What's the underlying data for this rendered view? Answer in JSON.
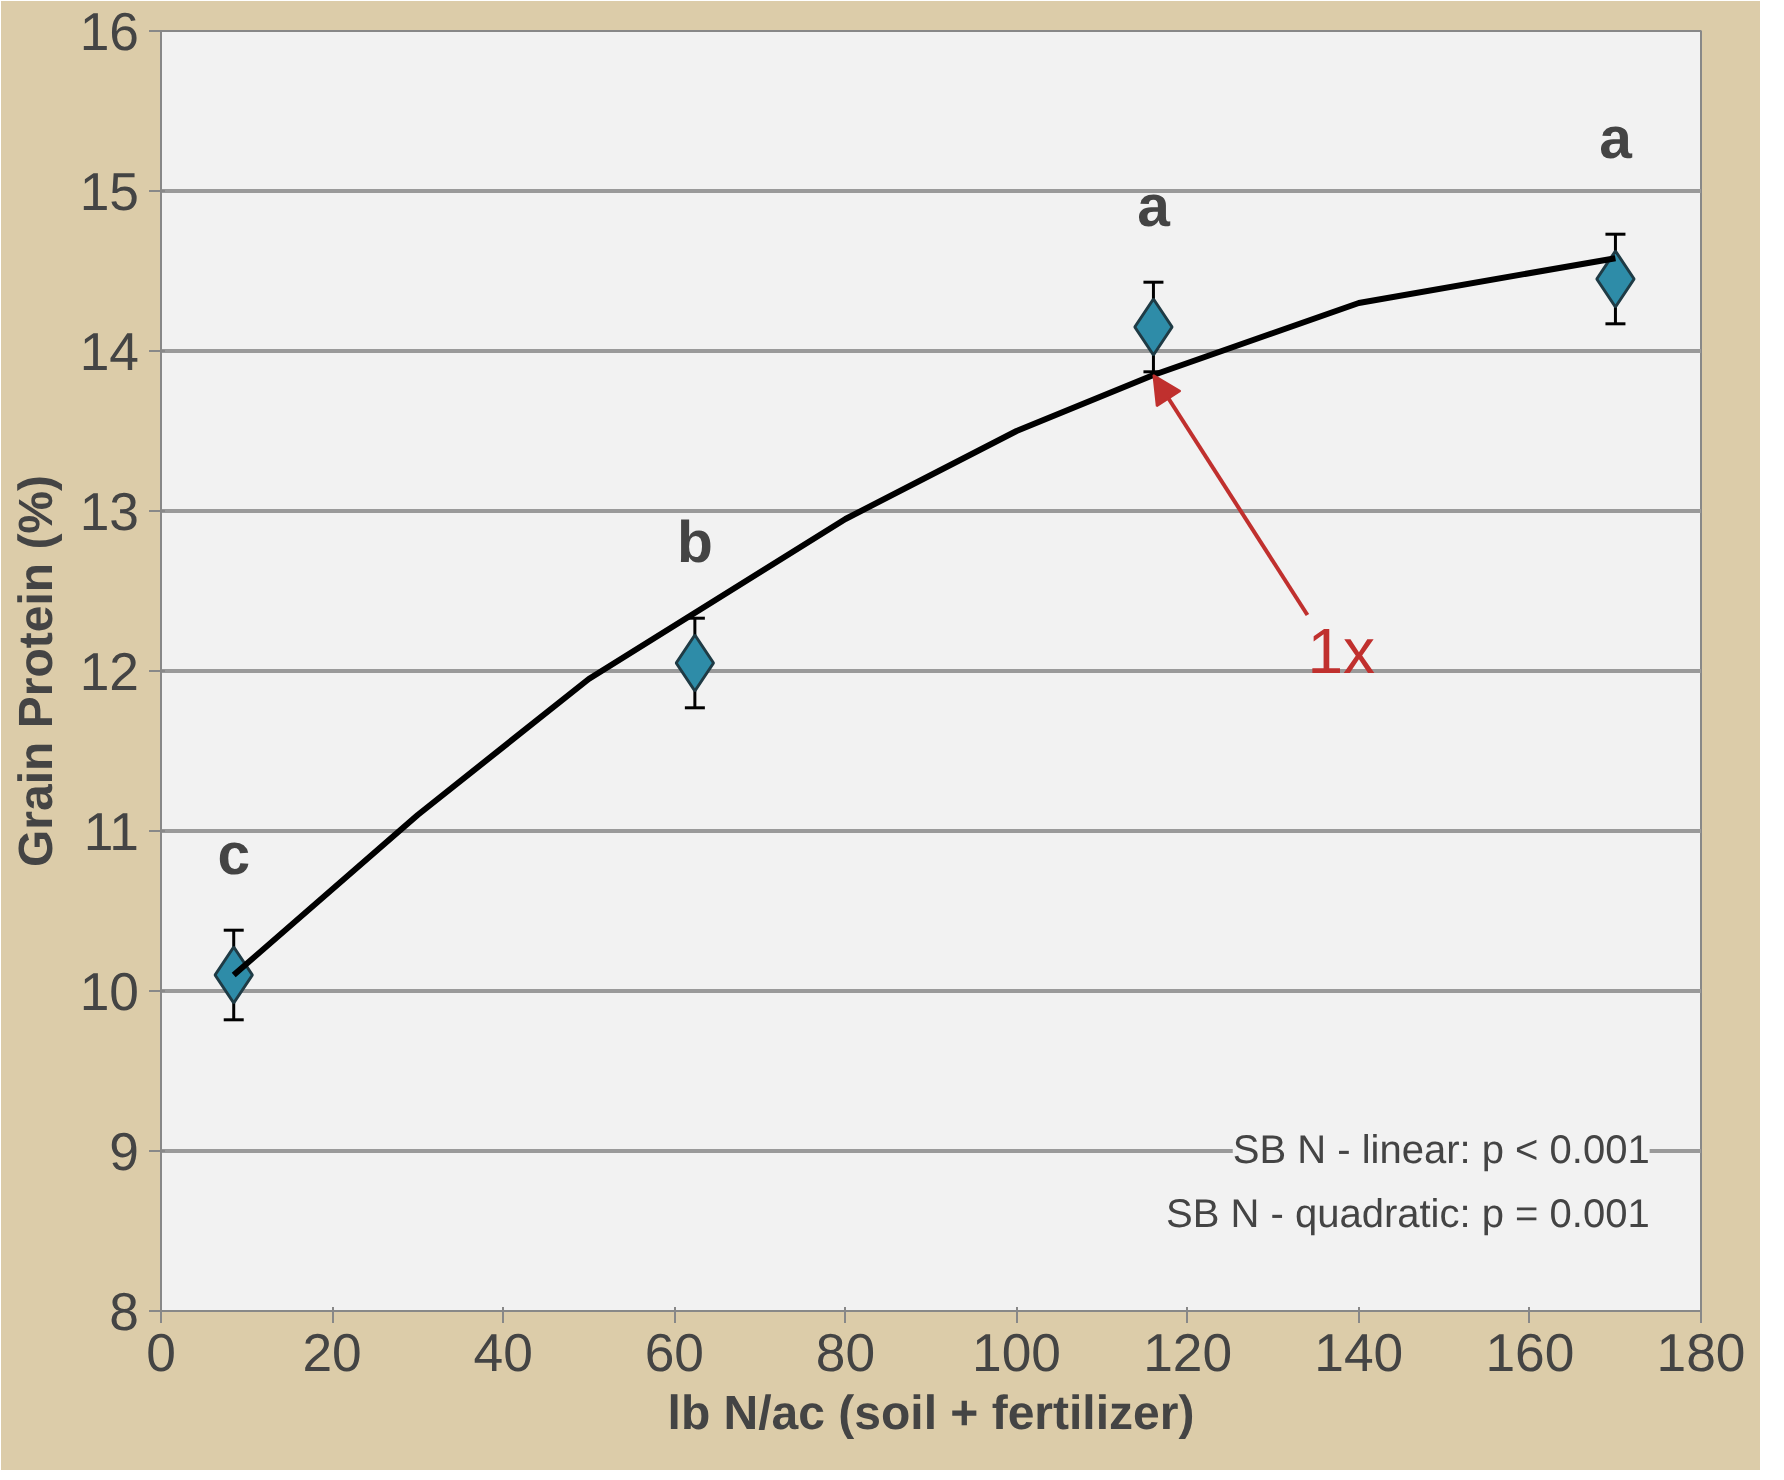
{
  "chart_data": {
    "type": "scatter",
    "xlabel": "lb N/ac (soil + fertilizer)",
    "ylabel": "Grain Protein (%)",
    "xlim": [
      0,
      180
    ],
    "ylim": [
      8,
      16
    ],
    "xticks": [
      0,
      20,
      40,
      60,
      80,
      100,
      120,
      140,
      160,
      180
    ],
    "yticks": [
      8,
      9,
      10,
      11,
      12,
      13,
      14,
      15,
      16
    ],
    "grid": "y",
    "series": [
      {
        "marker": "diamond",
        "color": "#2e8ca8",
        "x": [
          8.5,
          62.4,
          116,
          170
        ],
        "values": [
          10.1,
          12.05,
          14.15,
          14.45
        ],
        "errors": [
          0.28,
          0.28,
          0.28,
          0.28
        ]
      },
      {
        "type": "line",
        "color": "#000000",
        "x": [
          8.5,
          30,
          50,
          62,
          80,
          100,
          116,
          140,
          170
        ],
        "values": [
          10.1,
          11.1,
          11.95,
          12.35,
          12.95,
          13.5,
          13.85,
          14.3,
          14.58
        ]
      }
    ],
    "annotations": [
      {
        "text": "c",
        "x": 8.5,
        "y": 10.1
      },
      {
        "text": "b",
        "x": 62.4,
        "y": 12.05
      },
      {
        "text": "a",
        "x": 116,
        "y": 14.15
      },
      {
        "text": "a",
        "x": 170,
        "y": 14.45
      },
      {
        "text": "1x",
        "x": 116,
        "y": 13.85
      },
      "SB N - linear: p < 0.001",
      "SB N - quadratic: p = 0.001"
    ]
  }
}
